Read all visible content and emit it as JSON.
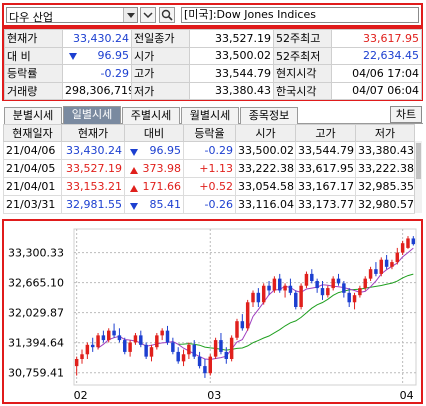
{
  "topbar": {
    "market_combo": "다우 산업",
    "search_icon": "search-icon",
    "name_box": "[미국]:Dow Jones Indices"
  },
  "quote": {
    "rows": [
      [
        {
          "label": "현재가"
        },
        {
          "value": "33,430.24",
          "color": "down"
        },
        {
          "label": "전일종가"
        },
        {
          "value": "33,527.19"
        },
        {
          "label": "52주최고"
        },
        {
          "value": "33,617.95",
          "color": "up"
        }
      ],
      [
        {
          "label": "대 비"
        },
        {
          "value": "96.95",
          "color": "down",
          "arrow": "down"
        },
        {
          "label": "시가"
        },
        {
          "value": "33,500.02"
        },
        {
          "label": "52주최저"
        },
        {
          "value": "22,634.45",
          "color": "down"
        }
      ],
      [
        {
          "label": "등락률"
        },
        {
          "value": "-0.29",
          "color": "down"
        },
        {
          "label": "고가"
        },
        {
          "value": "33,544.79"
        },
        {
          "label": "현지시각"
        },
        {
          "value": "04/06 17:04"
        }
      ],
      [
        {
          "label": "거래량"
        },
        {
          "value": "298,306,719"
        },
        {
          "label": "저가"
        },
        {
          "value": "33,380.43"
        },
        {
          "label": "한국시각"
        },
        {
          "value": "04/07 06:04"
        }
      ]
    ]
  },
  "tabs": {
    "items": [
      "분별시세",
      "일별시세",
      "주별시세",
      "월별시세",
      "종목정보"
    ],
    "active": 1,
    "chart_button": "차트"
  },
  "daily": {
    "headers": [
      "현재일자",
      "현재가",
      "대비",
      "등락율",
      "시가",
      "고가",
      "저가"
    ],
    "rows": [
      {
        "date": "21/04/06",
        "price": "33,430.24",
        "change": "96.95",
        "dir": "down",
        "rate": "-0.29",
        "open": "33,500.02",
        "high": "33,544.79",
        "low": "33,380.43"
      },
      {
        "date": "21/04/05",
        "price": "33,527.19",
        "change": "373.98",
        "dir": "up",
        "rate": "+1.13",
        "open": "33,222.38",
        "high": "33,617.95",
        "low": "33,222.38"
      },
      {
        "date": "21/04/01",
        "price": "33,153.21",
        "change": "171.66",
        "dir": "up",
        "rate": "+0.52",
        "open": "33,054.58",
        "high": "33,167.17",
        "low": "32,985.35"
      },
      {
        "date": "21/03/31",
        "price": "32,981.55",
        "change": "85.41",
        "dir": "down",
        "rate": "-0.26",
        "open": "33,116.04",
        "high": "33,173.77",
        "low": "32,980.57"
      }
    ]
  },
  "chart_data": {
    "type": "candlestick",
    "y_ticks": [
      "33,300.33",
      "32,665.10",
      "32,029.87",
      "31,394.64",
      "30,759.41"
    ],
    "y_tick_values": [
      33300.33,
      32665.1,
      32029.87,
      31394.64,
      30759.41
    ],
    "ylim": [
      30500,
      33800
    ],
    "x_ticks": [
      {
        "label": "02",
        "index": 0
      },
      {
        "label": "03",
        "index": 25
      },
      {
        "label": "04",
        "index": 61
      }
    ],
    "up_color": "#e0201c",
    "down_color": "#1c3fd0",
    "ma_short_color": "#a040c0",
    "ma_long_color": "#20a020",
    "candles": [
      [
        30900,
        31100,
        30700,
        31050
      ],
      [
        31050,
        31250,
        30950,
        31150
      ],
      [
        31150,
        31400,
        31050,
        31350
      ],
      [
        31350,
        31500,
        31200,
        31300
      ],
      [
        31300,
        31600,
        31250,
        31550
      ],
      [
        31550,
        31650,
        31400,
        31450
      ],
      [
        31450,
        31700,
        31400,
        31650
      ],
      [
        31650,
        31800,
        31500,
        31550
      ],
      [
        31550,
        31700,
        31400,
        31450
      ],
      [
        31450,
        31500,
        31150,
        31200
      ],
      [
        31200,
        31450,
        31100,
        31400
      ],
      [
        31400,
        31600,
        31350,
        31550
      ],
      [
        31550,
        31650,
        31300,
        31350
      ],
      [
        31350,
        31400,
        31050,
        31100
      ],
      [
        31100,
        31350,
        31000,
        31300
      ],
      [
        31300,
        31600,
        31250,
        31550
      ],
      [
        31550,
        31700,
        31450,
        31650
      ],
      [
        31650,
        31750,
        31350,
        31400
      ],
      [
        31400,
        31500,
        31150,
        31200
      ],
      [
        31200,
        31300,
        30950,
        31000
      ],
      [
        31000,
        31250,
        30900,
        31150
      ],
      [
        31150,
        31400,
        31050,
        31350
      ],
      [
        31350,
        31450,
        31050,
        31100
      ],
      [
        31100,
        31200,
        30850,
        30900
      ],
      [
        30900,
        31050,
        30650,
        30750
      ],
      [
        30750,
        31150,
        30700,
        31100
      ],
      [
        31100,
        31500,
        31050,
        31450
      ],
      [
        31450,
        31600,
        31150,
        31200
      ],
      [
        31200,
        31300,
        30950,
        31050
      ],
      [
        31050,
        31550,
        31000,
        31500
      ],
      [
        31500,
        31900,
        31450,
        31850
      ],
      [
        31850,
        32000,
        31650,
        31700
      ],
      [
        31700,
        32300,
        31650,
        32250
      ],
      [
        32250,
        32500,
        32150,
        32450
      ],
      [
        32450,
        32550,
        32150,
        32250
      ],
      [
        32250,
        32650,
        32200,
        32600
      ],
      [
        32600,
        32700,
        32400,
        32500
      ],
      [
        32500,
        32800,
        32450,
        32750
      ],
      [
        32750,
        32850,
        32450,
        32500
      ],
      [
        32500,
        32650,
        32350,
        32600
      ],
      [
        32600,
        32750,
        32400,
        32450
      ],
      [
        32450,
        32500,
        32100,
        32150
      ],
      [
        32150,
        32650,
        32100,
        32600
      ],
      [
        32600,
        32900,
        32550,
        32850
      ],
      [
        32850,
        32950,
        32650,
        32700
      ],
      [
        32700,
        32750,
        32450,
        32550
      ],
      [
        32550,
        32700,
        32300,
        32400
      ],
      [
        32400,
        32600,
        32350,
        32550
      ],
      [
        32550,
        32800,
        32500,
        32750
      ],
      [
        32750,
        32850,
        32600,
        32650
      ],
      [
        32650,
        32700,
        32350,
        32450
      ],
      [
        32450,
        32550,
        32150,
        32250
      ],
      [
        32250,
        32450,
        32100,
        32400
      ],
      [
        32400,
        32600,
        32350,
        32550
      ],
      [
        32550,
        32800,
        32500,
        32750
      ],
      [
        32750,
        33000,
        32700,
        32950
      ],
      [
        32950,
        33100,
        32800,
        32850
      ],
      [
        32850,
        33200,
        32800,
        33150
      ],
      [
        33150,
        33250,
        32950,
        33000
      ],
      [
        33000,
        33150,
        32950,
        33100
      ],
      [
        33100,
        33400,
        33050,
        33300
      ],
      [
        33300,
        33550,
        33250,
        33500
      ],
      [
        33400,
        33650,
        33380,
        33600
      ],
      [
        33600,
        33650,
        33450,
        33480
      ]
    ]
  }
}
